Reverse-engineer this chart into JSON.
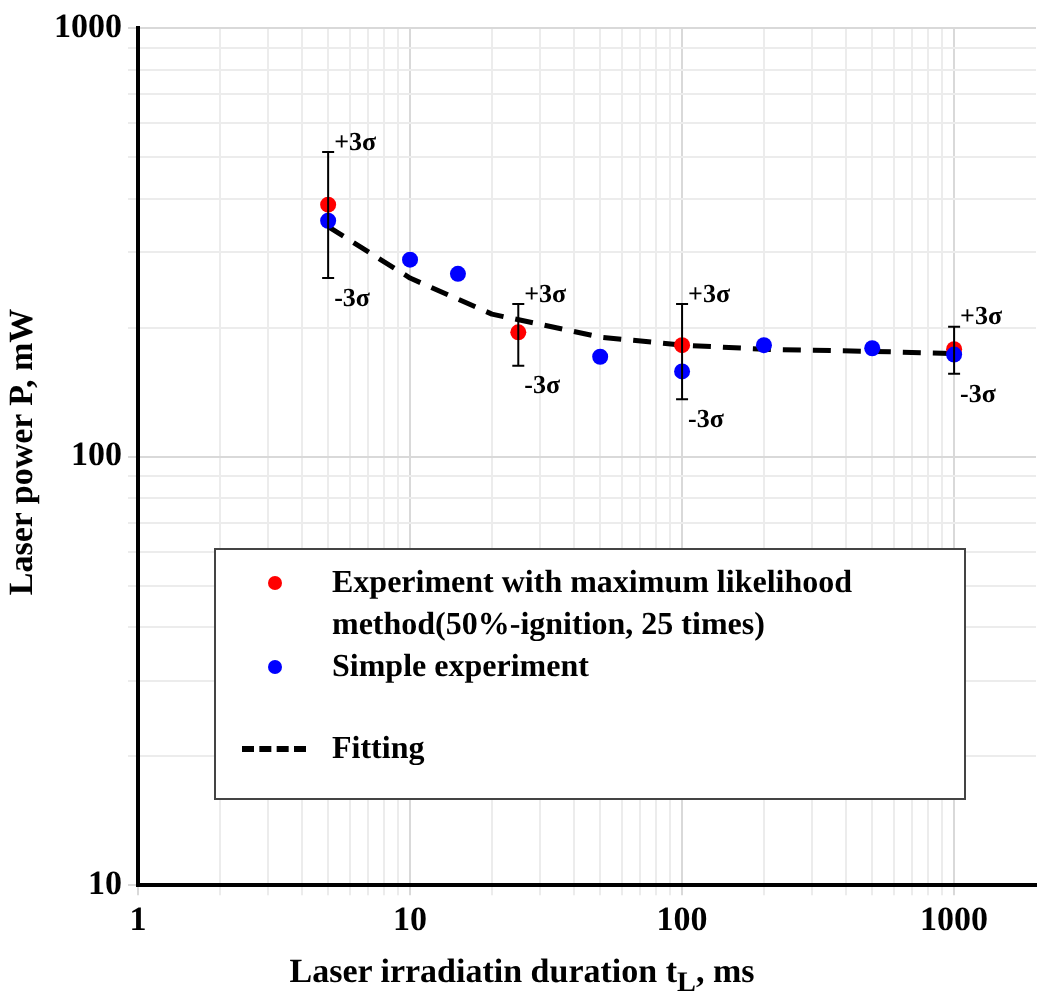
{
  "chart_data": {
    "type": "scatter",
    "xlabel": "Laser irradiatin duration t$_{L}$, ms",
    "ylabel": "Laser power P, mW",
    "log": "xy",
    "xlim": [
      1,
      2000
    ],
    "ylim": [
      10,
      1000
    ],
    "xticks": [
      1,
      {
        "value": 2,
        "label": null
      },
      {
        "value": 3,
        "label": null
      },
      {
        "value": 4,
        "label": null
      },
      {
        "value": 5,
        "label": null
      },
      {
        "value": 6,
        "label": null
      },
      {
        "value": 7,
        "label": null
      },
      {
        "value": 8,
        "label": null
      },
      {
        "value": 9,
        "label": null
      },
      10,
      {
        "value": 20,
        "label": null
      },
      {
        "value": 30,
        "label": null
      },
      {
        "value": 40,
        "label": null
      },
      {
        "value": 50,
        "label": null
      },
      {
        "value": 60,
        "label": null
      },
      {
        "value": 70,
        "label": null
      },
      {
        "value": 80,
        "label": null
      },
      {
        "value": 90,
        "label": null
      },
      100,
      {
        "value": 200,
        "label": null
      },
      {
        "value": 300,
        "label": null
      },
      {
        "value": 400,
        "label": null
      },
      {
        "value": 500,
        "label": null
      },
      {
        "value": 600,
        "label": null
      },
      {
        "value": 700,
        "label": null
      },
      {
        "value": 800,
        "label": null
      },
      {
        "value": 900,
        "label": null
      },
      1000
    ],
    "yticks": [
      10,
      {
        "value": 20,
        "label": null
      },
      {
        "value": 30,
        "label": null
      },
      {
        "value": 40,
        "label": null
      },
      {
        "value": 50,
        "label": null
      },
      {
        "value": 60,
        "label": null
      },
      {
        "value": 70,
        "label": null
      },
      {
        "value": 80,
        "label": null
      },
      {
        "value": 90,
        "label": null
      },
      100,
      {
        "value": 200,
        "label": null
      },
      {
        "value": 300,
        "label": null
      },
      {
        "value": 400,
        "label": null
      },
      {
        "value": 500,
        "label": null
      },
      {
        "value": 600,
        "label": null
      },
      {
        "value": 700,
        "label": null
      },
      {
        "value": 800,
        "label": null
      },
      {
        "value": 900,
        "label": null
      },
      1000
    ],
    "grid": true,
    "legend": "bottom",
    "marker": "circle",
    "series": [
      {
        "name": "Experiment with maximum likelihood method(50%-ignition, 25 times)",
        "color": "#ff0000",
        "x": [
          5,
          25,
          100,
          1000
        ],
        "values": [
          387,
          195,
          182,
          178
        ],
        "errors": [
          [
            261,
            514
          ],
          [
            163,
            227
          ],
          [
            136,
            227
          ],
          [
            156,
            201
          ]
        ]
      },
      {
        "name": "Simple experiment",
        "color": "#0000ff",
        "x": [
          5,
          10,
          15,
          50,
          100,
          200,
          500,
          1000
        ],
        "values": [
          355,
          288,
          267,
          171,
          158,
          182,
          179,
          173
        ]
      },
      {
        "name": "Fitting",
        "type": "line",
        "color": "#000000",
        "line_style": "dashed",
        "marker": "none",
        "x": [
          5,
          10,
          20,
          50,
          100,
          200,
          500,
          1000
        ],
        "values": [
          344,
          261,
          215,
          190,
          182,
          178,
          176,
          174
        ]
      }
    ],
    "annotations": [
      {
        "text": "+3σ",
        "x": 5,
        "y": 514
      },
      {
        "text": "-3σ",
        "x": 5,
        "y": 261
      },
      {
        "text": "+3σ",
        "x": 25,
        "y": 227
      },
      {
        "text": "-3σ",
        "x": 25,
        "y": 163
      },
      {
        "text": "+3σ",
        "x": 100,
        "y": 227
      },
      {
        "text": "-3σ",
        "x": 100,
        "y": 136
      },
      {
        "text": "+3σ",
        "x": 1000,
        "y": 201
      },
      {
        "text": "-3σ",
        "x": 1000,
        "y": 156
      }
    ]
  }
}
